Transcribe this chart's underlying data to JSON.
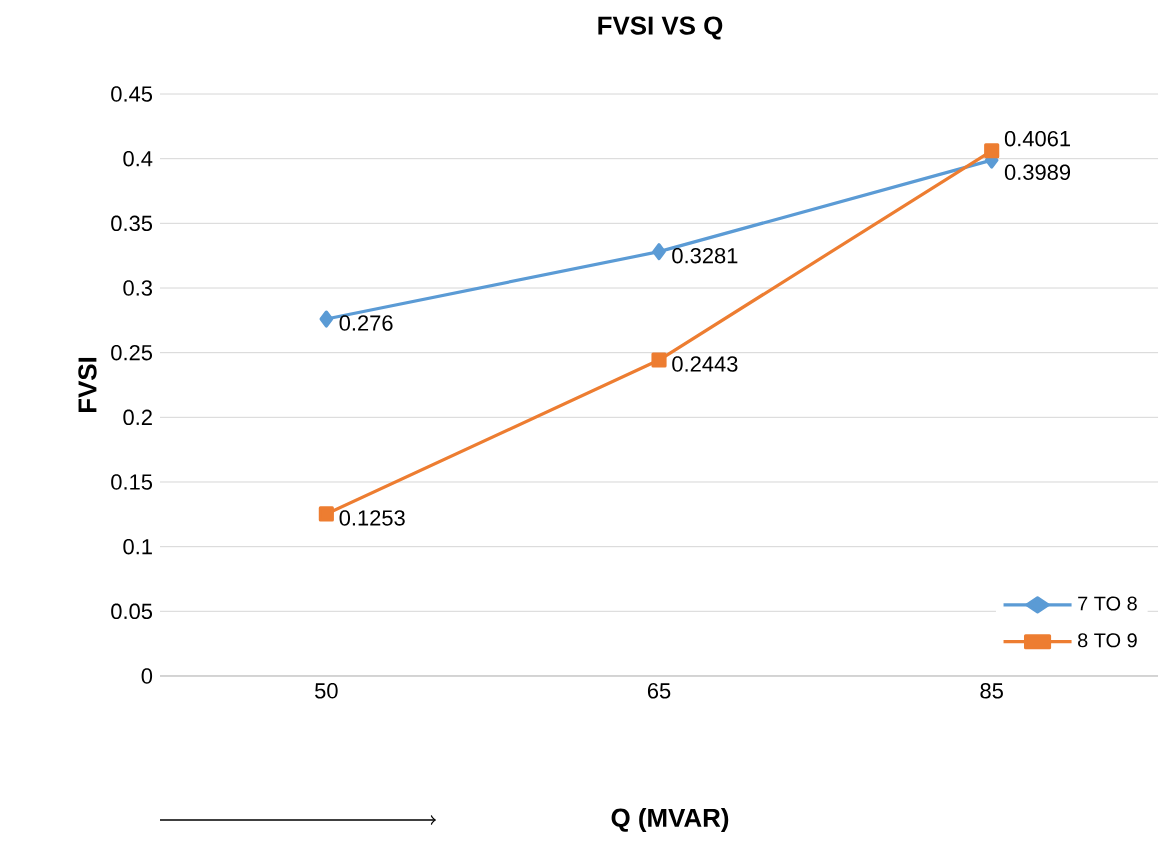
{
  "chart_data": {
    "type": "line",
    "title": "FVSI VS Q",
    "xlabel": "Q (MVAR)",
    "ylabel": "FVSI",
    "categories": [
      "50",
      "65",
      "85"
    ],
    "series": [
      {
        "name": "7 TO 8",
        "color": "#5b9bd5",
        "marker": "diamond",
        "values": [
          0.276,
          0.3281,
          0.3989
        ]
      },
      {
        "name": "8 TO 9",
        "color": "#ed7d31",
        "marker": "square",
        "values": [
          0.1253,
          0.2443,
          0.4061
        ]
      }
    ],
    "ylim": [
      0,
      0.45
    ],
    "yticks": [
      0,
      0.05,
      0.1,
      0.15,
      0.2,
      0.25,
      0.3,
      0.35,
      0.4,
      0.45
    ],
    "grid": "y",
    "legend": "bottom right",
    "data_labels": true
  }
}
